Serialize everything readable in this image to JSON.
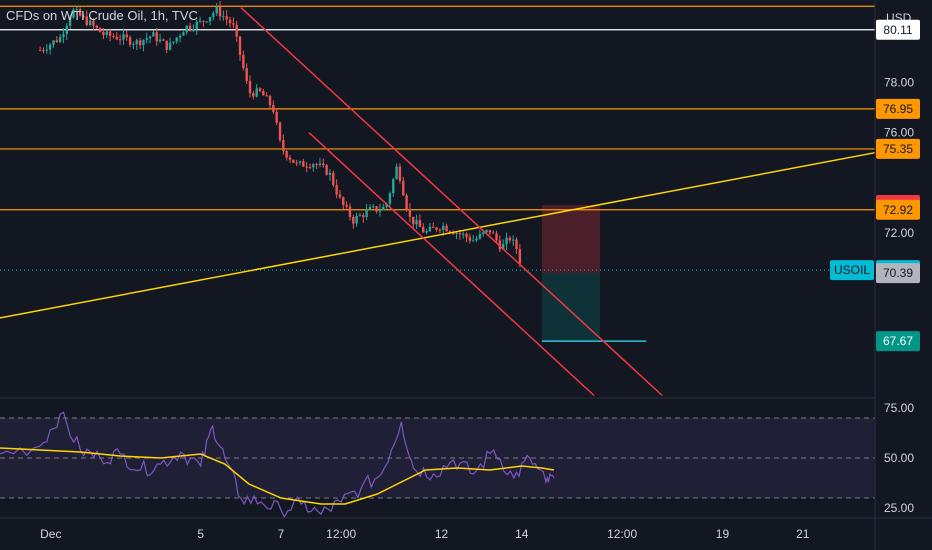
{
  "header": {
    "symbol_title": "CFDs on WTI Crude Oil, 1h, TVC",
    "currency": "USD"
  },
  "colors": {
    "background": "#131722",
    "up": "#26a69a",
    "down": "#ef5350",
    "level": "#ff9800",
    "white_level": "#ffffff",
    "trendline": "#ffd600",
    "channel": "#f23645",
    "rsi_line": "#7e57c2",
    "rsi_ma": "#ffd600",
    "rsi_band": "#7e57c2",
    "current_price": "#00bcd4"
  },
  "chart_data": [
    {
      "type": "candlestick",
      "title": "CFDs on WTI Crude Oil, 1h, TVC",
      "ylabel": "USD",
      "ylim": [
        65.4,
        81.3
      ],
      "xlim": [
        -1.0,
        20.8
      ],
      "x_tick_labels": [
        {
          "label": "Dec",
          "x": 0.0
        },
        {
          "label": "5",
          "x": 4.0
        },
        {
          "label": "7",
          "x": 6.0
        },
        {
          "label": "12:00",
          "x": 7.5
        },
        {
          "label": "12",
          "x": 10.0
        },
        {
          "label": "14",
          "x": 12.0
        },
        {
          "label": "12:00",
          "x": 14.5
        },
        {
          "label": "19",
          "x": 17.0
        },
        {
          "label": "21",
          "x": 19.0
        }
      ],
      "y_tick_labels": [
        "78.00",
        "76.00",
        "72.00"
      ],
      "price_path": [
        {
          "x": 0.0,
          "y": 79.3
        },
        {
          "x": 0.5,
          "y": 79.8
        },
        {
          "x": 0.8,
          "y": 80.9
        },
        {
          "x": 1.2,
          "y": 80.4
        },
        {
          "x": 1.6,
          "y": 79.9
        },
        {
          "x": 2.0,
          "y": 79.8
        },
        {
          "x": 2.4,
          "y": 79.6
        },
        {
          "x": 2.8,
          "y": 79.9
        },
        {
          "x": 3.2,
          "y": 79.4
        },
        {
          "x": 3.6,
          "y": 80.2
        },
        {
          "x": 4.0,
          "y": 80.4
        },
        {
          "x": 4.4,
          "y": 80.9
        },
        {
          "x": 4.8,
          "y": 80.3
        },
        {
          "x": 5.0,
          "y": 79.0
        },
        {
          "x": 5.2,
          "y": 77.6
        },
        {
          "x": 5.5,
          "y": 77.6
        },
        {
          "x": 5.8,
          "y": 77.0
        },
        {
          "x": 6.0,
          "y": 75.4
        },
        {
          "x": 6.4,
          "y": 74.7
        },
        {
          "x": 6.8,
          "y": 74.8
        },
        {
          "x": 7.2,
          "y": 74.4
        },
        {
          "x": 7.5,
          "y": 73.2
        },
        {
          "x": 7.8,
          "y": 72.5
        },
        {
          "x": 8.2,
          "y": 72.9
        },
        {
          "x": 8.6,
          "y": 73.0
        },
        {
          "x": 8.9,
          "y": 74.7
        },
        {
          "x": 9.2,
          "y": 72.6
        },
        {
          "x": 9.6,
          "y": 72.0
        },
        {
          "x": 10.0,
          "y": 72.3
        },
        {
          "x": 10.4,
          "y": 72.0
        },
        {
          "x": 10.8,
          "y": 71.7
        },
        {
          "x": 11.2,
          "y": 72.1
        },
        {
          "x": 11.5,
          "y": 71.4
        },
        {
          "x": 11.7,
          "y": 71.8
        },
        {
          "x": 11.9,
          "y": 71.3
        },
        {
          "x": 12.0,
          "y": 70.5
        }
      ],
      "horizontal_levels": [
        {
          "name": "top",
          "y": 81.05,
          "color": "#ff9800"
        },
        {
          "name": "80.11",
          "y": 80.11,
          "color": "#ffffff"
        },
        {
          "name": "76.95",
          "y": 76.95,
          "color": "#ff9800"
        },
        {
          "name": "75.35",
          "y": 75.35,
          "color": "#ff9800"
        },
        {
          "name": "72.92",
          "y": 72.92,
          "color": "#ff9800"
        }
      ],
      "trendlines": [
        {
          "kind": "support",
          "color": "#ffd600",
          "from": [
            -1.0,
            68.6
          ],
          "to": [
            20.8,
            75.2
          ]
        },
        {
          "kind": "channel-upper",
          "color": "#f23645",
          "from": [
            5.0,
            81.0
          ],
          "to": [
            15.5,
            65.5
          ]
        },
        {
          "kind": "channel-lower",
          "color": "#f23645",
          "from": [
            6.7,
            76.0
          ],
          "to": [
            13.8,
            65.5
          ]
        }
      ],
      "position": {
        "entry": 70.39,
        "stop": 73.11,
        "target": 67.67,
        "x_start": 12.5,
        "x_end": 13.95,
        "target_x_end": 15.1
      },
      "price_labels": [
        {
          "text": "80.11",
          "y": 80.11,
          "bg": "#ffffff",
          "fg": "#131722"
        },
        {
          "text": "76.95",
          "y": 76.95,
          "bg": "#ff9800",
          "fg": "#131722"
        },
        {
          "text": "75.35",
          "y": 75.35,
          "bg": "#ff9800",
          "fg": "#131722"
        },
        {
          "text": "73.11",
          "y": 73.11,
          "bg": "#f23645",
          "fg": "#ffffff"
        },
        {
          "text": "72.92",
          "y": 72.92,
          "bg": "#ff9800",
          "fg": "#131722"
        },
        {
          "text": "70.51",
          "y": 70.51,
          "bg": "#00bcd4",
          "fg": "#131722"
        },
        {
          "text": "70.39",
          "y": 70.39,
          "bg": "#b2b5be",
          "fg": "#131722"
        },
        {
          "text": "67.67",
          "y": 67.67,
          "bg": "#009688",
          "fg": "#ffffff"
        }
      ],
      "current_price_label": "USOIL",
      "current_price": 70.51
    },
    {
      "type": "line",
      "ylim": [
        20,
        80
      ],
      "band": [
        30,
        70
      ],
      "y_tick_labels": [
        "75.00",
        "50.00",
        "25.00"
      ],
      "series_path": [
        {
          "x": -1.0,
          "y": 52
        },
        {
          "x": 0.0,
          "y": 56
        },
        {
          "x": 0.5,
          "y": 72
        },
        {
          "x": 1.0,
          "y": 54
        },
        {
          "x": 1.5,
          "y": 50
        },
        {
          "x": 2.0,
          "y": 52
        },
        {
          "x": 2.5,
          "y": 44
        },
        {
          "x": 3.0,
          "y": 47
        },
        {
          "x": 3.5,
          "y": 53
        },
        {
          "x": 4.0,
          "y": 46
        },
        {
          "x": 4.3,
          "y": 66
        },
        {
          "x": 4.6,
          "y": 50
        },
        {
          "x": 5.0,
          "y": 30
        },
        {
          "x": 5.5,
          "y": 28
        },
        {
          "x": 6.0,
          "y": 24
        },
        {
          "x": 6.5,
          "y": 27
        },
        {
          "x": 7.0,
          "y": 22
        },
        {
          "x": 7.5,
          "y": 28
        },
        {
          "x": 8.0,
          "y": 35
        },
        {
          "x": 8.5,
          "y": 42
        },
        {
          "x": 9.0,
          "y": 68
        },
        {
          "x": 9.3,
          "y": 45
        },
        {
          "x": 9.8,
          "y": 42
        },
        {
          "x": 10.3,
          "y": 49
        },
        {
          "x": 10.8,
          "y": 42
        },
        {
          "x": 11.3,
          "y": 54
        },
        {
          "x": 11.8,
          "y": 40
        },
        {
          "x": 12.2,
          "y": 50
        },
        {
          "x": 12.6,
          "y": 38
        },
        {
          "x": 12.8,
          "y": 40
        }
      ],
      "ma_path": [
        {
          "x": -1.0,
          "y": 55
        },
        {
          "x": 0.0,
          "y": 54
        },
        {
          "x": 1.0,
          "y": 53
        },
        {
          "x": 2.0,
          "y": 51
        },
        {
          "x": 3.0,
          "y": 50
        },
        {
          "x": 4.0,
          "y": 52
        },
        {
          "x": 4.6,
          "y": 47
        },
        {
          "x": 5.2,
          "y": 37
        },
        {
          "x": 6.0,
          "y": 30
        },
        {
          "x": 7.0,
          "y": 27
        },
        {
          "x": 7.6,
          "y": 27
        },
        {
          "x": 8.4,
          "y": 32
        },
        {
          "x": 9.0,
          "y": 38
        },
        {
          "x": 9.6,
          "y": 44
        },
        {
          "x": 10.4,
          "y": 45
        },
        {
          "x": 11.2,
          "y": 44
        },
        {
          "x": 12.0,
          "y": 46
        },
        {
          "x": 12.5,
          "y": 45
        },
        {
          "x": 12.8,
          "y": 44
        }
      ]
    }
  ]
}
